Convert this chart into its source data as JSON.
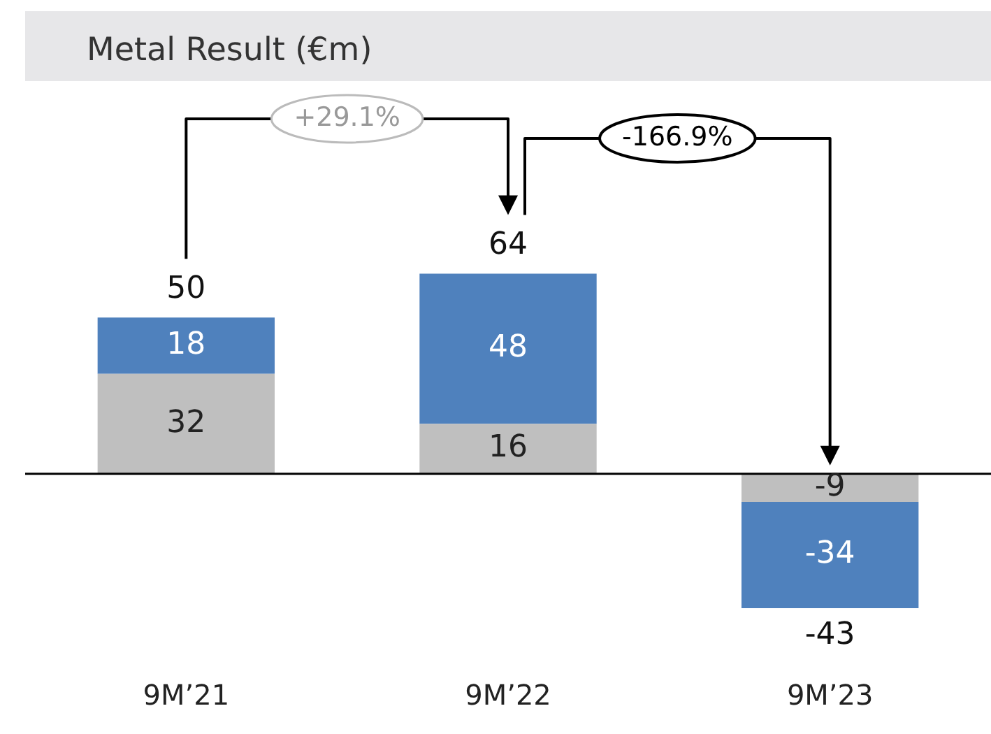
{
  "chart_data": {
    "type": "bar",
    "title": "Metal Result (€m)",
    "categories": [
      "9M’21",
      "9M’22",
      "9M’23"
    ],
    "stacked": true,
    "data_labels": true,
    "legend": false,
    "grid": false,
    "series": [
      {
        "color": "#bfbfbf",
        "values": [
          32,
          16,
          -9
        ]
      },
      {
        "color": "#4f81bd",
        "values": [
          18,
          48,
          -34
        ]
      }
    ],
    "totals": [
      "50",
      "64",
      "-43"
    ],
    "annotations": [
      "+29.1%",
      "-166.9%"
    ]
  }
}
